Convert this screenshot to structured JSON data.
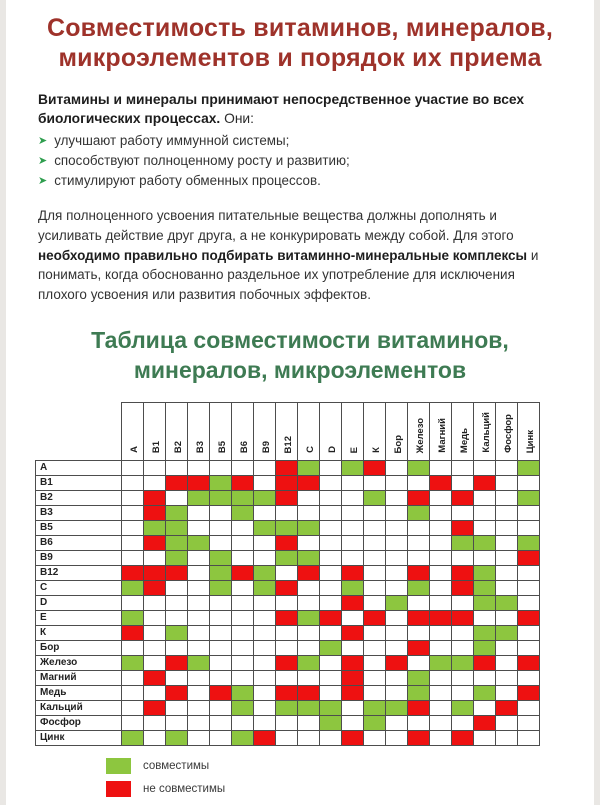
{
  "title": {
    "line1": "Совместимость витаминов, минералов,",
    "line2": "микроэлементов и порядок их приема",
    "color": "#9e322a"
  },
  "intro": {
    "bold": "Витамины и минералы принимают непосредственное участие во всех биологических процессах.",
    "normal": " Они:",
    "bullets": [
      "улучшают работу иммунной системы;",
      "способствуют полноценному росту и развитию;",
      "стимулируют работу обменных процессов."
    ]
  },
  "paragraph": {
    "part1": "Для полноценного усвоения питательные вещества должны дополнять и усиливать действие друг друга, а не конкурировать между собой. Для этого ",
    "bold": "необходимо правильно подбирать витаминно-минеральные комплексы",
    "part3": " и понимать, когда обоснованно раздельное их употребление для исключения плохого усвоения или развития побочных эффектов."
  },
  "table_title": {
    "line1": "Таблица совместимости витаминов,",
    "line2": "минералов, микроэлементов",
    "color": "#3e7b53"
  },
  "chart_data": {
    "type": "heatmap",
    "title": "Таблица совместимости витаминов, минералов, микроэлементов",
    "legend": [
      {
        "key": "g",
        "label": "совместимы",
        "color": "#8dc63f"
      },
      {
        "key": "r",
        "label": "не совместимы",
        "color": "#ee1111"
      }
    ],
    "elements": [
      "А",
      "В1",
      "В2",
      "В3",
      "В5",
      "В6",
      "В9",
      "В12",
      "С",
      "D",
      "Е",
      "К",
      "Бор",
      "Железо",
      "Магний",
      "Медь",
      "Кальций",
      "Фосфор",
      "Цинк"
    ],
    "matrix": [
      [
        "",
        "",
        "",
        "",
        "",
        "",
        "",
        "r",
        "g",
        "",
        "g",
        "r",
        "",
        "g",
        "",
        "",
        "",
        "",
        "g"
      ],
      [
        "",
        "",
        "r",
        "r",
        "g",
        "r",
        "",
        "r",
        "r",
        "",
        "",
        "",
        "",
        "",
        "r",
        "",
        "r",
        "",
        ""
      ],
      [
        "",
        "r",
        "",
        "g",
        "g",
        "g",
        "g",
        "r",
        "",
        "",
        "",
        "g",
        "",
        "r",
        "",
        "r",
        "",
        "",
        "g"
      ],
      [
        "",
        "r",
        "g",
        "",
        "",
        "g",
        "",
        "",
        "",
        "",
        "",
        "",
        "",
        "g",
        "",
        "",
        "",
        "",
        ""
      ],
      [
        "",
        "g",
        "g",
        "",
        "",
        "",
        "g",
        "g",
        "g",
        "",
        "",
        "",
        "",
        "",
        "",
        "r",
        "",
        "",
        ""
      ],
      [
        "",
        "r",
        "g",
        "g",
        "",
        "",
        "",
        "r",
        "",
        "",
        "",
        "",
        "",
        "",
        "",
        "g",
        "g",
        "",
        "g"
      ],
      [
        "",
        "",
        "g",
        "",
        "g",
        "",
        "",
        "g",
        "g",
        "",
        "",
        "",
        "",
        "",
        "",
        "",
        "",
        "",
        "r"
      ],
      [
        "r",
        "r",
        "r",
        "",
        "g",
        "r",
        "g",
        "",
        "r",
        "",
        "r",
        "",
        "",
        "r",
        "",
        "r",
        "g",
        "",
        ""
      ],
      [
        "g",
        "r",
        "",
        "",
        "g",
        "",
        "g",
        "r",
        "",
        "",
        "g",
        "",
        "",
        "g",
        "",
        "r",
        "g",
        "",
        ""
      ],
      [
        "",
        "",
        "",
        "",
        "",
        "",
        "",
        "",
        "",
        "",
        "r",
        "",
        "g",
        "",
        "",
        "",
        "g",
        "g",
        ""
      ],
      [
        "g",
        "",
        "",
        "",
        "",
        "",
        "",
        "r",
        "g",
        "r",
        "",
        "r",
        "",
        "r",
        "r",
        "r",
        "",
        "",
        "r"
      ],
      [
        "r",
        "",
        "g",
        "",
        "",
        "",
        "",
        "",
        "",
        "",
        "r",
        "",
        "",
        "",
        "",
        "",
        "g",
        "g",
        ""
      ],
      [
        "",
        "",
        "",
        "",
        "",
        "",
        "",
        "",
        "",
        "g",
        "",
        "",
        "",
        "r",
        "",
        "",
        "g",
        "",
        ""
      ],
      [
        "g",
        "",
        "r",
        "g",
        "",
        "",
        "",
        "r",
        "g",
        "",
        "r",
        "",
        "r",
        "",
        "g",
        "g",
        "r",
        "",
        "r"
      ],
      [
        "",
        "r",
        "",
        "",
        "",
        "",
        "",
        "",
        "",
        "",
        "r",
        "",
        "",
        "g",
        "",
        "",
        "",
        "",
        ""
      ],
      [
        "",
        "",
        "r",
        "",
        "r",
        "g",
        "",
        "r",
        "r",
        "",
        "r",
        "",
        "",
        "g",
        "",
        "",
        "g",
        "",
        "r"
      ],
      [
        "",
        "r",
        "",
        "",
        "",
        "g",
        "",
        "g",
        "g",
        "g",
        "",
        "g",
        "g",
        "r",
        "",
        "g",
        "",
        "r",
        ""
      ],
      [
        "",
        "",
        "",
        "",
        "",
        "",
        "",
        "",
        "",
        "g",
        "",
        "g",
        "",
        "",
        "",
        "",
        "r",
        "",
        ""
      ],
      [
        "g",
        "",
        "g",
        "",
        "",
        "g",
        "r",
        "",
        "",
        "",
        "r",
        "",
        "",
        "r",
        "",
        "r",
        "",
        "",
        ""
      ]
    ]
  }
}
